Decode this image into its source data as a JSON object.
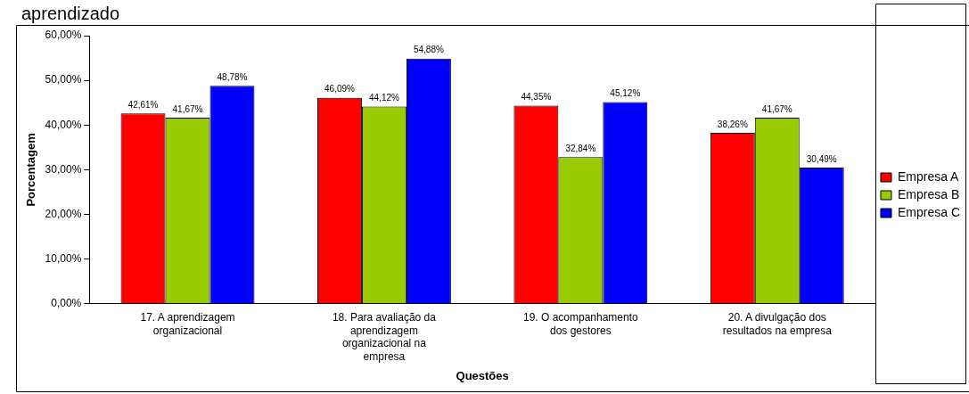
{
  "chart_data": {
    "type": "bar",
    "title": "aprendizado",
    "xlabel": "Questões",
    "ylabel": "Porcentagem",
    "categories": [
      "17. A aprendizagem organizacional",
      "18. Para avaliação da aprendizagem organizacional na empresa",
      "19. O acompanhamento dos gestores",
      "20. A divulgação dos resultados na empresa"
    ],
    "series": [
      {
        "name": "Empresa A",
        "color": "#ff0000",
        "values": [
          42.61,
          46.09,
          44.35,
          38.26
        ],
        "value_labels": [
          "42,61%",
          "46,09%",
          "44,35%",
          "38,26%"
        ]
      },
      {
        "name": "Empresa B",
        "color": "#99cc00",
        "values": [
          41.67,
          44.12,
          32.84,
          41.67
        ],
        "value_labels": [
          "41,67%",
          "44,12%",
          "32,84%",
          "41,67%"
        ]
      },
      {
        "name": "Empresa C",
        "color": "#0000ff",
        "values": [
          48.78,
          54.88,
          45.12,
          30.49
        ],
        "value_labels": [
          "48,78%",
          "54,88%",
          "45,12%",
          "30,49%"
        ]
      }
    ],
    "ylim": [
      0,
      60
    ],
    "yticks": [
      {
        "value": 0,
        "label": "0,00%"
      },
      {
        "value": 10,
        "label": "10,00%"
      },
      {
        "value": 20,
        "label": "20,00%"
      },
      {
        "value": 30,
        "label": "30,00%"
      },
      {
        "value": 40,
        "label": "40,00%"
      },
      {
        "value": 50,
        "label": "50,00%"
      },
      {
        "value": 60,
        "label": "60,00%"
      }
    ],
    "grid": false,
    "legend": "right"
  }
}
